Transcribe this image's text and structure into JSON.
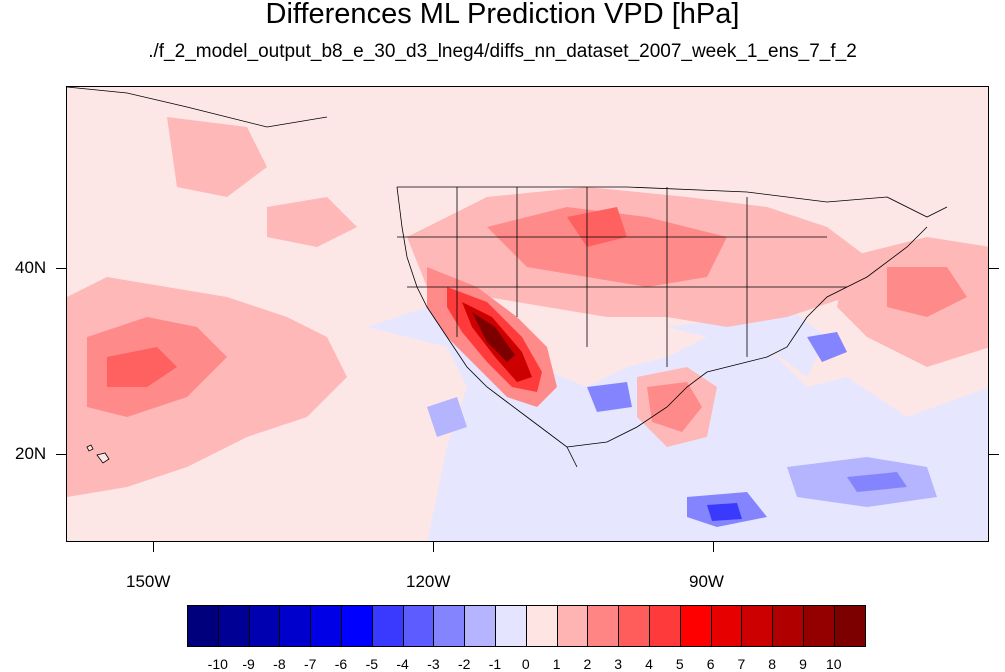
{
  "title": "Differences ML Prediction VPD [hPa]",
  "subtitle": "./f_2_model_output_b8_e_30_d3_lneg4/diffs_nn_dataset_2007_week_1_ens_7_f_2",
  "y_axis_labels": [
    "40N",
    "20N"
  ],
  "x_axis_labels": [
    "150W",
    "120W",
    "90W"
  ],
  "colorbar": {
    "labels": [
      "-10",
      "-9",
      "-8",
      "-7",
      "-6",
      "-5",
      "-4",
      "-3",
      "-2",
      "-1",
      "0",
      "1",
      "2",
      "3",
      "4",
      "5",
      "6",
      "7",
      "8",
      "9",
      "10"
    ],
    "colors": [
      "#00007d",
      "#000094",
      "#0000b0",
      "#0000cc",
      "#0000e6",
      "#0000ff",
      "#3a3aff",
      "#5c5cff",
      "#8484ff",
      "#b4b4ff",
      "#e4e4ff",
      "#ffe4e4",
      "#ffb4b4",
      "#ff8484",
      "#ff5c5c",
      "#ff3a3a",
      "#ff0000",
      "#e60000",
      "#cc0000",
      "#b00000",
      "#940000",
      "#7d0000"
    ]
  }
}
